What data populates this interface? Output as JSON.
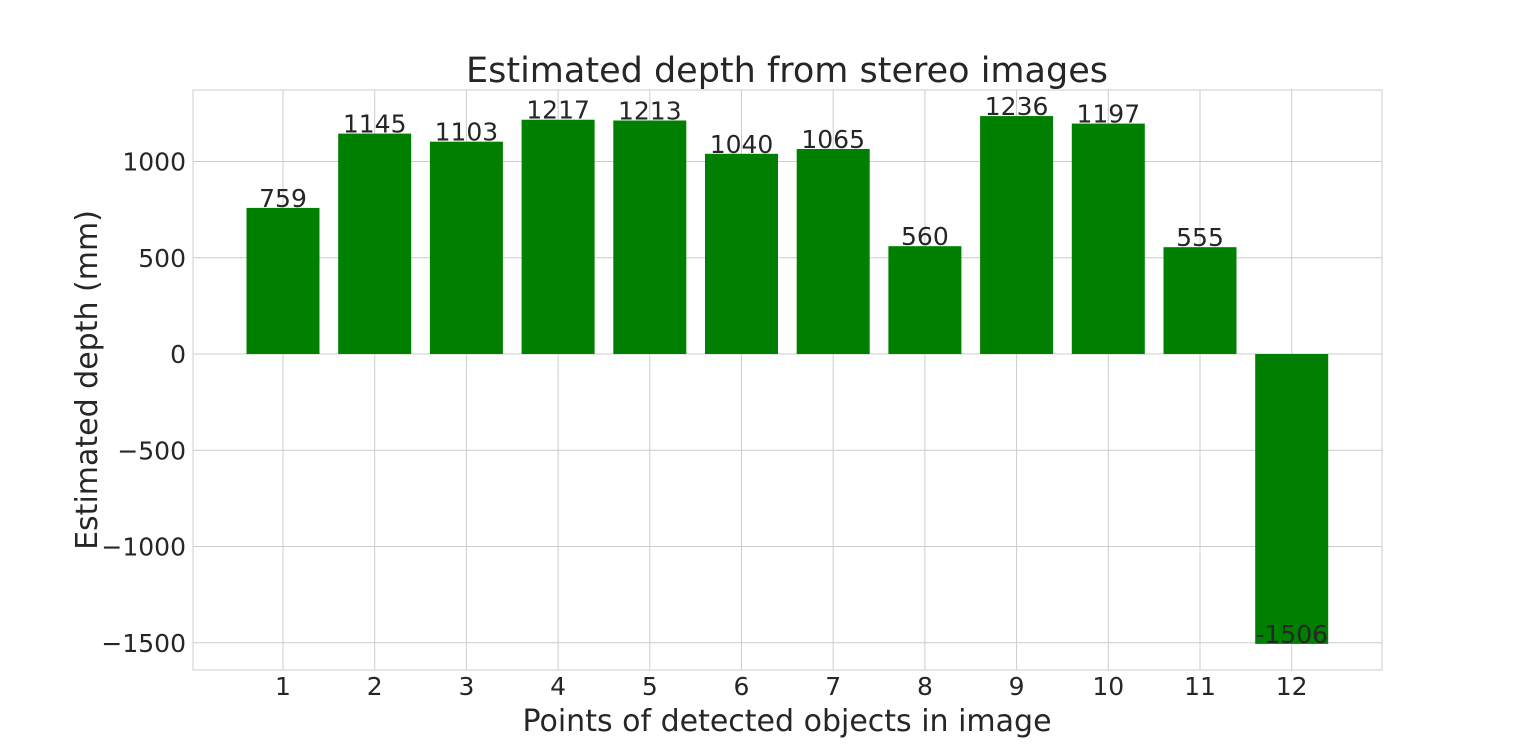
{
  "chart_data": {
    "type": "bar",
    "title": "Estimated depth from stereo images",
    "xlabel": "Points of detected objects in image",
    "ylabel": "Estimated depth (mm)",
    "categories": [
      "1",
      "2",
      "3",
      "4",
      "5",
      "6",
      "7",
      "8",
      "9",
      "10",
      "11",
      "12"
    ],
    "values": [
      759,
      1145,
      1103,
      1217,
      1213,
      1040,
      1065,
      560,
      1236,
      1197,
      555,
      -1506
    ],
    "data_labels": [
      "759",
      "1145",
      "1103",
      "1217",
      "1213",
      "1040",
      "1065",
      "560",
      "1236",
      "1197",
      "555",
      "-1506"
    ],
    "yticks": [
      1000,
      500,
      0,
      -500,
      -1000,
      -1500
    ],
    "ytick_labels": [
      "1000",
      "500",
      "0",
      "−500",
      "−1000",
      "−1500"
    ],
    "ylim": [
      -1640,
      1380
    ],
    "grid": true,
    "colors": {
      "bar": "#008000",
      "grid": "#cccccc",
      "text": "#262626"
    }
  }
}
